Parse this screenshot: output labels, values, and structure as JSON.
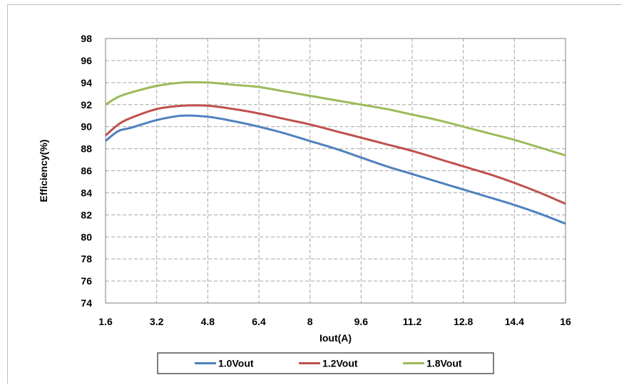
{
  "chart_data": {
    "type": "line",
    "xlabel": "Iout(A)",
    "ylabel": "Efficiency(%)",
    "xlim": [
      1.6,
      16
    ],
    "ylim": [
      74,
      98
    ],
    "x_ticks": [
      "1.6",
      "3.2",
      "4.8",
      "6.4",
      "8",
      "9.6",
      "11.2",
      "12.8",
      "14.4",
      "16"
    ],
    "y_ticks": [
      "74",
      "76",
      "78",
      "80",
      "82",
      "84",
      "86",
      "88",
      "90",
      "92",
      "94",
      "96",
      "98"
    ],
    "grid": true,
    "legend_position": "bottom",
    "series": [
      {
        "name": "1.0Vout",
        "color": "#4f81bd",
        "points": [
          [
            1.6,
            88.7
          ],
          [
            2.0,
            89.6
          ],
          [
            2.4,
            89.9
          ],
          [
            3.2,
            90.6
          ],
          [
            4.0,
            91.0
          ],
          [
            4.8,
            90.9
          ],
          [
            5.6,
            90.5
          ],
          [
            6.4,
            90.0
          ],
          [
            7.2,
            89.4
          ],
          [
            8.0,
            88.7
          ],
          [
            8.8,
            88.0
          ],
          [
            9.6,
            87.2
          ],
          [
            10.4,
            86.4
          ],
          [
            11.2,
            85.7
          ],
          [
            12.0,
            85.0
          ],
          [
            12.8,
            84.3
          ],
          [
            13.6,
            83.6
          ],
          [
            14.4,
            82.9
          ],
          [
            15.2,
            82.1
          ],
          [
            16.0,
            81.2
          ]
        ]
      },
      {
        "name": "1.2Vout",
        "color": "#c0504d",
        "points": [
          [
            1.6,
            89.2
          ],
          [
            2.0,
            90.2
          ],
          [
            2.4,
            90.8
          ],
          [
            3.2,
            91.6
          ],
          [
            4.0,
            91.9
          ],
          [
            4.8,
            91.9
          ],
          [
            5.6,
            91.6
          ],
          [
            6.4,
            91.2
          ],
          [
            7.2,
            90.7
          ],
          [
            8.0,
            90.2
          ],
          [
            8.8,
            89.6
          ],
          [
            9.6,
            89.0
          ],
          [
            10.4,
            88.4
          ],
          [
            11.2,
            87.8
          ],
          [
            12.0,
            87.1
          ],
          [
            12.8,
            86.4
          ],
          [
            13.6,
            85.7
          ],
          [
            14.4,
            84.9
          ],
          [
            15.2,
            84.0
          ],
          [
            16.0,
            83.0
          ]
        ]
      },
      {
        "name": "1.8Vout",
        "color": "#9bbb59",
        "points": [
          [
            1.6,
            92.0
          ],
          [
            2.0,
            92.7
          ],
          [
            2.4,
            93.1
          ],
          [
            3.2,
            93.7
          ],
          [
            4.0,
            94.0
          ],
          [
            4.8,
            94.0
          ],
          [
            5.6,
            93.8
          ],
          [
            6.4,
            93.6
          ],
          [
            7.2,
            93.2
          ],
          [
            8.0,
            92.8
          ],
          [
            8.8,
            92.4
          ],
          [
            9.6,
            92.0
          ],
          [
            10.4,
            91.6
          ],
          [
            11.2,
            91.1
          ],
          [
            12.0,
            90.6
          ],
          [
            12.8,
            90.0
          ],
          [
            13.6,
            89.4
          ],
          [
            14.4,
            88.8
          ],
          [
            15.2,
            88.1
          ],
          [
            16.0,
            87.4
          ]
        ]
      }
    ]
  }
}
